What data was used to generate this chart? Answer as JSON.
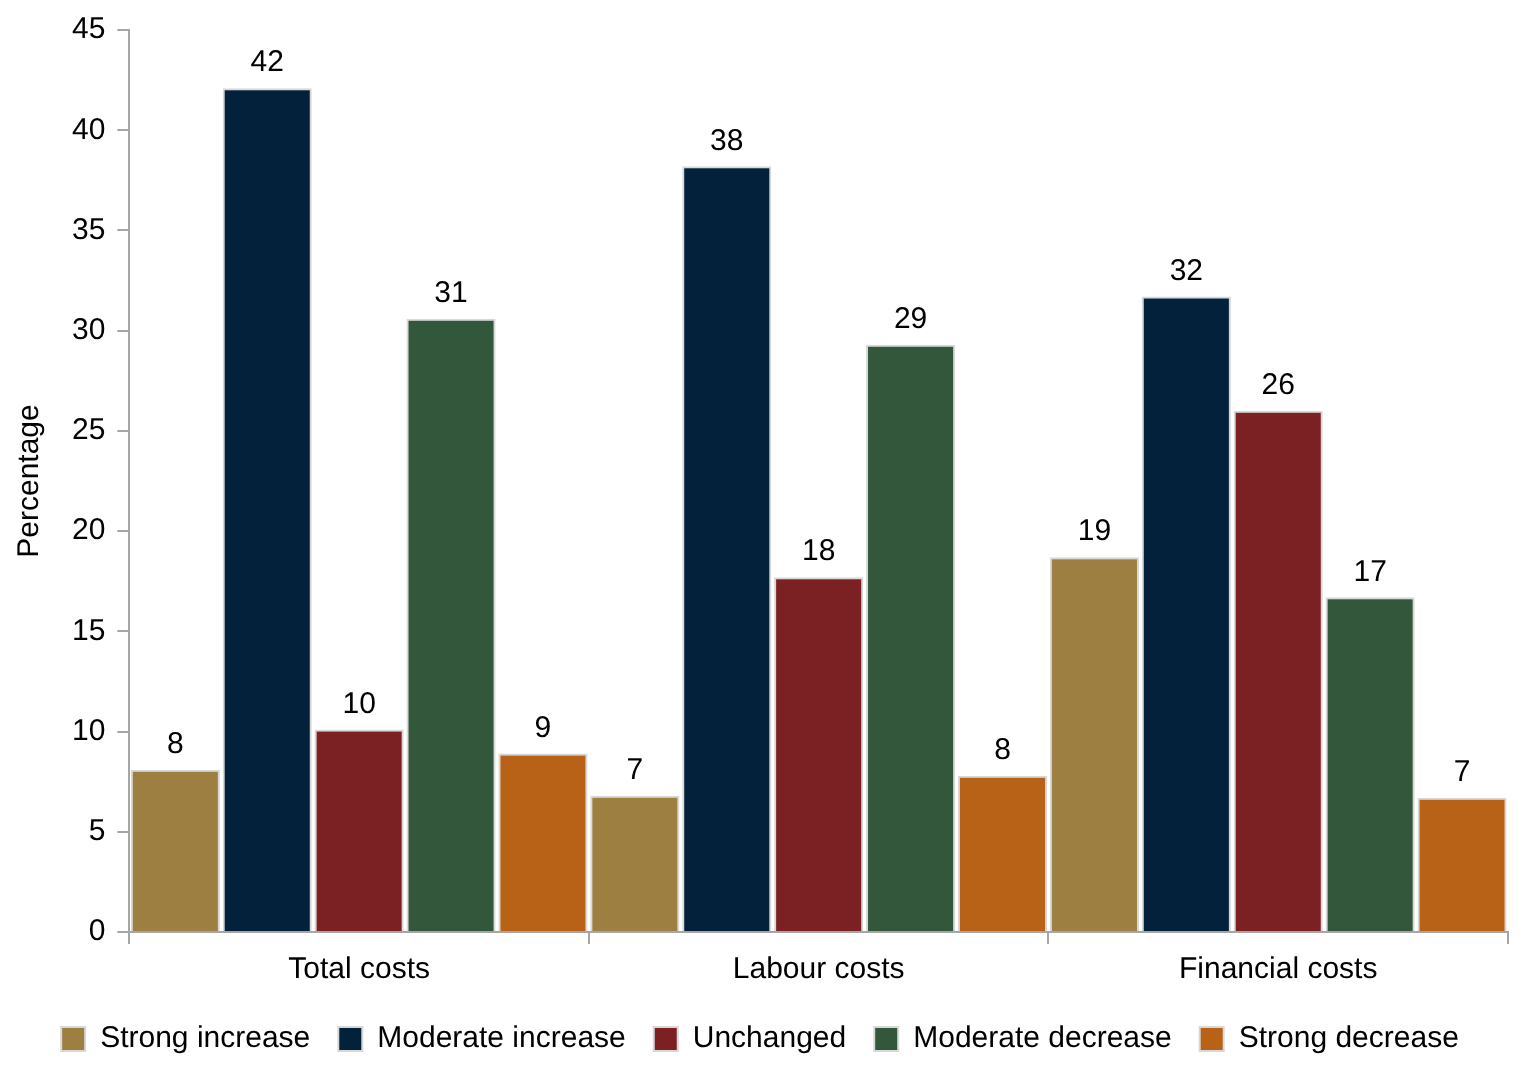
{
  "chart_data": {
    "type": "bar",
    "ylabel": "Percentage",
    "categories": [
      "Total costs",
      "Labour costs",
      "Financial costs"
    ],
    "series": [
      {
        "name": "Strong increase",
        "color": "#9c7f41",
        "values": [
          8.1,
          6.8,
          18.7
        ],
        "value_labels": [
          "8",
          "7",
          "19"
        ]
      },
      {
        "name": "Moderate increase",
        "color": "#03213a",
        "values": [
          42.1,
          38.2,
          31.7
        ],
        "value_labels": [
          "42",
          "38",
          "32"
        ]
      },
      {
        "name": "Unchanged",
        "color": "#7b2023",
        "values": [
          10.1,
          17.7,
          26.0
        ],
        "value_labels": [
          "10",
          "18",
          "26"
        ]
      },
      {
        "name": "Moderate decrease",
        "color": "#33573a",
        "values": [
          30.6,
          29.3,
          16.7
        ],
        "value_labels": [
          "31",
          "29",
          "17"
        ]
      },
      {
        "name": "Strong decrease",
        "color": "#b86217",
        "values": [
          8.9,
          7.8,
          6.7
        ],
        "value_labels": [
          "9",
          "8",
          "7"
        ]
      }
    ],
    "ylim": [
      0,
      45
    ],
    "yticks": [
      0,
      5,
      10,
      15,
      20,
      25,
      30,
      35,
      40,
      45
    ],
    "grid": false,
    "legend": "bottom"
  }
}
